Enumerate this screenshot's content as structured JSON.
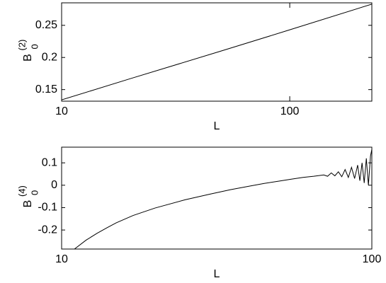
{
  "chart_data": [
    {
      "type": "line",
      "xlabel": "L",
      "ylabel": {
        "base": "B",
        "sub": "0",
        "sup": "(2)"
      },
      "x": [
        10,
        20,
        50,
        100,
        229
      ],
      "series": [
        {
          "color": "#000000",
          "values": [
            0.134,
            0.167,
            0.21,
            0.243,
            0.283
          ]
        }
      ],
      "xscale": "log",
      "xlim": [
        10,
        229
      ],
      "xticks": [
        10,
        100
      ],
      "ylim": [
        0.132,
        0.285
      ],
      "yticks": [
        0.15,
        0.2,
        0.25
      ]
    },
    {
      "type": "line",
      "xlabel": "L",
      "ylabel": {
        "base": "B",
        "sub": "0",
        "sup": "(4)"
      },
      "x": [
        11,
        12,
        13,
        14,
        15,
        17,
        20,
        25,
        30,
        35,
        40,
        45,
        50,
        55,
        60,
        65,
        70,
        72,
        74,
        76,
        78,
        80,
        82,
        84,
        86,
        88,
        90,
        91.5,
        93,
        94.5,
        96,
        97.5,
        99,
        100
      ],
      "series": [
        {
          "color": "#000000",
          "values": [
            -0.285,
            -0.245,
            -0.215,
            -0.19,
            -0.168,
            -0.135,
            -0.102,
            -0.065,
            -0.04,
            -0.02,
            -0.005,
            0.008,
            0.018,
            0.027,
            0.035,
            0.04,
            0.046,
            0.04,
            0.055,
            0.042,
            0.06,
            0.038,
            0.07,
            0.035,
            0.08,
            0.03,
            0.09,
            0.02,
            0.1,
            0.01,
            0.12,
            0.0,
            0.13,
            0.16
          ]
        }
      ],
      "xscale": "log",
      "xlim": [
        10,
        100
      ],
      "xticks": [
        10,
        100
      ],
      "ylim": [
        -0.285,
        0.17
      ],
      "yticks": [
        -0.2,
        -0.1,
        0,
        0.1
      ]
    }
  ]
}
